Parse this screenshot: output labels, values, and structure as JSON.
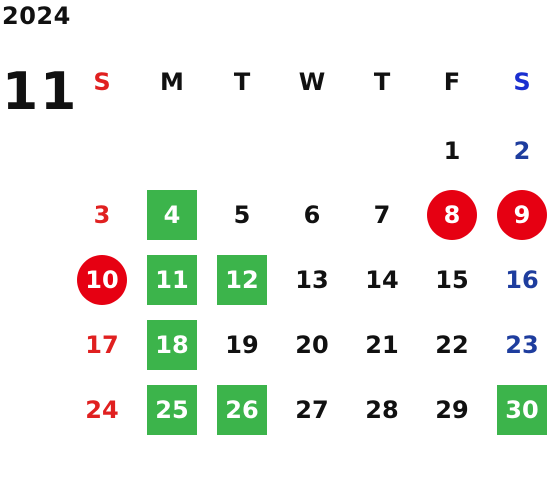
{
  "calendar": {
    "year": "2024",
    "month": "11",
    "weekdays": [
      "S",
      "M",
      "T",
      "W",
      "T",
      "F",
      "S"
    ],
    "weekday_colors": [
      "#e02020",
      "#111111",
      "#111111",
      "#111111",
      "#111111",
      "#111111",
      "#1a2fd0"
    ],
    "colors": {
      "sunday": "#e02020",
      "saturday": "#1e3d9e",
      "default": "#111111",
      "green_highlight": "#3cb44b",
      "red_circle": "#e60012",
      "highlight_text": "#ffffff"
    },
    "days": [
      {
        "label": "1",
        "style": "normal",
        "week": 0,
        "weekday": 5
      },
      {
        "label": "2",
        "style": "normal",
        "week": 0,
        "weekday": 6
      },
      {
        "label": "3",
        "style": "normal",
        "week": 1,
        "weekday": 0
      },
      {
        "label": "4",
        "style": "green",
        "week": 1,
        "weekday": 1
      },
      {
        "label": "5",
        "style": "normal",
        "week": 1,
        "weekday": 2
      },
      {
        "label": "6",
        "style": "normal",
        "week": 1,
        "weekday": 3
      },
      {
        "label": "7",
        "style": "normal",
        "week": 1,
        "weekday": 4
      },
      {
        "label": "8",
        "style": "red-circle",
        "week": 1,
        "weekday": 5
      },
      {
        "label": "9",
        "style": "red-circle",
        "week": 1,
        "weekday": 6
      },
      {
        "label": "10",
        "style": "red-circle",
        "week": 2,
        "weekday": 0
      },
      {
        "label": "11",
        "style": "green",
        "week": 2,
        "weekday": 1
      },
      {
        "label": "12",
        "style": "green",
        "week": 2,
        "weekday": 2
      },
      {
        "label": "13",
        "style": "normal",
        "week": 2,
        "weekday": 3
      },
      {
        "label": "14",
        "style": "normal",
        "week": 2,
        "weekday": 4
      },
      {
        "label": "15",
        "style": "normal",
        "week": 2,
        "weekday": 5
      },
      {
        "label": "16",
        "style": "normal",
        "week": 2,
        "weekday": 6
      },
      {
        "label": "17",
        "style": "normal",
        "week": 3,
        "weekday": 0
      },
      {
        "label": "18",
        "style": "green",
        "week": 3,
        "weekday": 1
      },
      {
        "label": "19",
        "style": "normal",
        "week": 3,
        "weekday": 2
      },
      {
        "label": "20",
        "style": "normal",
        "week": 3,
        "weekday": 3
      },
      {
        "label": "21",
        "style": "normal",
        "week": 3,
        "weekday": 4
      },
      {
        "label": "22",
        "style": "normal",
        "week": 3,
        "weekday": 5
      },
      {
        "label": "23",
        "style": "normal",
        "week": 3,
        "weekday": 6
      },
      {
        "label": "24",
        "style": "normal",
        "week": 4,
        "weekday": 0
      },
      {
        "label": "25",
        "style": "green",
        "week": 4,
        "weekday": 1
      },
      {
        "label": "26",
        "style": "green",
        "week": 4,
        "weekday": 2
      },
      {
        "label": "27",
        "style": "normal",
        "week": 4,
        "weekday": 3
      },
      {
        "label": "28",
        "style": "normal",
        "week": 4,
        "weekday": 4
      },
      {
        "label": "29",
        "style": "normal",
        "week": 4,
        "weekday": 5
      },
      {
        "label": "30",
        "style": "green",
        "week": 4,
        "weekday": 6
      }
    ]
  }
}
